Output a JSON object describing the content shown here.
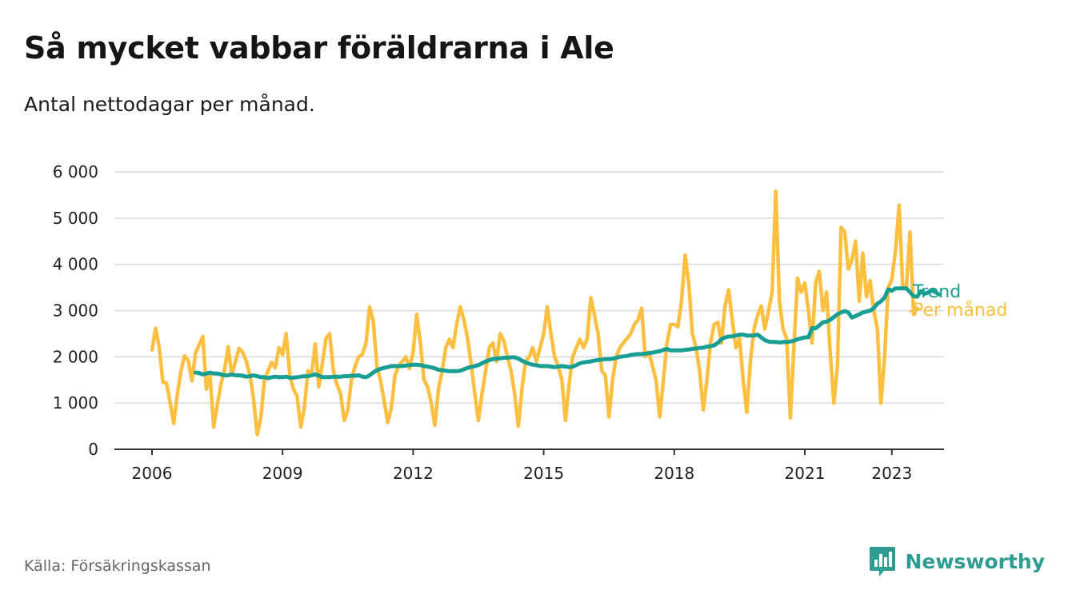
{
  "header": {
    "title": "Så mycket vabbar föräldrarna i Ale",
    "subtitle": "Antal nettodagar per månad."
  },
  "footer": {
    "source": "Källa: Försäkringskassan",
    "brand": "Newsworthy",
    "brand_icon": "bar-chart-icon",
    "brand_color": "#2f9c91"
  },
  "colors": {
    "monthly": "#fcbf40",
    "trend": "#189e92",
    "grid": "#d9d9d9",
    "axis": "#333333"
  },
  "chart_data": {
    "type": "line",
    "title": "Så mycket vabbar föräldrarna i Ale",
    "subtitle": "Antal nettodagar per månad.",
    "xlabel": "",
    "ylabel": "",
    "x_start": "2006-01",
    "x_ticks": [
      "2006",
      "2009",
      "2012",
      "2015",
      "2018",
      "2021",
      "2023"
    ],
    "y_ticks": [
      0,
      1000,
      2000,
      3000,
      4000,
      5000,
      6000
    ],
    "y_tick_labels": [
      "0",
      "1 000",
      "2 000",
      "3 000",
      "4 000",
      "5 000",
      "6 000"
    ],
    "ylim": [
      0,
      6000
    ],
    "grid": true,
    "legend": "end-of-line labels",
    "series": [
      {
        "name": "Per månad",
        "color": "#fcbf40",
        "values": [
          2150,
          2620,
          2200,
          1450,
          1430,
          1000,
          560,
          1200,
          1700,
          2020,
          1920,
          1480,
          2080,
          2260,
          2440,
          1300,
          1600,
          480,
          960,
          1400,
          1720,
          2220,
          1600,
          1900,
          2180,
          2100,
          1900,
          1600,
          1100,
          320,
          680,
          1500,
          1700,
          1880,
          1760,
          2200,
          2050,
          2500,
          1600,
          1300,
          1150,
          480,
          900,
          1700,
          1620,
          2280,
          1350,
          1880,
          2400,
          2500,
          1700,
          1400,
          1200,
          620,
          850,
          1500,
          1800,
          2000,
          2050,
          2300,
          3080,
          2780,
          1800,
          1500,
          1050,
          580,
          900,
          1600,
          1800,
          1900,
          2000,
          1750,
          2100,
          2920,
          2300,
          1500,
          1350,
          1000,
          520,
          1300,
          1700,
          2200,
          2380,
          2200,
          2700,
          3080,
          2800,
          2400,
          1850,
          1200,
          620,
          1200,
          1700,
          2200,
          2300,
          1900,
          2500,
          2350,
          2000,
          1700,
          1200,
          500,
          1300,
          1900,
          2000,
          2200,
          1900,
          2200,
          2500,
          3080,
          2500,
          2000,
          1800,
          1500,
          620,
          1400,
          2000,
          2200,
          2380,
          2200,
          2400,
          3280,
          2900,
          2500,
          1700,
          1600,
          700,
          1500,
          2000,
          2200,
          2300,
          2400,
          2500,
          2700,
          2800,
          3050,
          2000,
          2100,
          1800,
          1500,
          700,
          1500,
          2300,
          2700,
          2700,
          2650,
          3200,
          4200,
          3600,
          2500,
          2200,
          1700,
          850,
          1500,
          2300,
          2700,
          2750,
          2300,
          3100,
          3450,
          2800,
          2200,
          2400,
          1500,
          800,
          1900,
          2600,
          2900,
          3100,
          2600,
          3000,
          3400,
          5580,
          3200,
          2600,
          2400,
          680,
          2200,
          3700,
          3400,
          3600,
          3000,
          2300,
          3600,
          3850,
          3000,
          3400,
          2100,
          1000,
          1800,
          4800,
          4700,
          3900,
          4100,
          4500,
          3200,
          4240,
          3300,
          3650,
          3000,
          2600,
          1000,
          2000,
          3500,
          3680,
          4280,
          5280,
          3500,
          3500,
          4700,
          2920,
          3050
        ]
      },
      {
        "name": "Trend",
        "color": "#189e92",
        "start_index": 12,
        "values": [
          1660,
          1650,
          1620,
          1640,
          1660,
          1640,
          1640,
          1620,
          1600,
          1600,
          1620,
          1600,
          1600,
          1590,
          1570,
          1580,
          1600,
          1580,
          1560,
          1560,
          1540,
          1560,
          1570,
          1560,
          1560,
          1570,
          1550,
          1550,
          1560,
          1570,
          1580,
          1580,
          1600,
          1620,
          1590,
          1560,
          1560,
          1560,
          1570,
          1570,
          1570,
          1580,
          1580,
          1590,
          1590,
          1600,
          1570,
          1560,
          1600,
          1660,
          1710,
          1740,
          1760,
          1780,
          1800,
          1800,
          1800,
          1800,
          1810,
          1820,
          1830,
          1830,
          1820,
          1800,
          1790,
          1770,
          1750,
          1720,
          1710,
          1700,
          1690,
          1690,
          1690,
          1700,
          1730,
          1760,
          1780,
          1800,
          1820,
          1860,
          1900,
          1930,
          1950,
          1960,
          1970,
          1980,
          1980,
          1990,
          1990,
          1960,
          1920,
          1880,
          1850,
          1830,
          1820,
          1800,
          1800,
          1800,
          1790,
          1780,
          1790,
          1800,
          1790,
          1780,
          1790,
          1820,
          1860,
          1880,
          1890,
          1900,
          1920,
          1930,
          1940,
          1950,
          1950,
          1960,
          1980,
          2000,
          2010,
          2020,
          2040,
          2050,
          2060,
          2060,
          2070,
          2080,
          2090,
          2110,
          2120,
          2150,
          2170,
          2140,
          2140,
          2140,
          2140,
          2150,
          2160,
          2170,
          2180,
          2190,
          2200,
          2220,
          2230,
          2250,
          2300,
          2380,
          2420,
          2440,
          2440,
          2460,
          2480,
          2480,
          2460,
          2460,
          2460,
          2480,
          2420,
          2360,
          2330,
          2320,
          2320,
          2310,
          2320,
          2320,
          2330,
          2350,
          2380,
          2400,
          2420,
          2420,
          2620,
          2620,
          2680,
          2750,
          2760,
          2800,
          2860,
          2920,
          2960,
          2990,
          2960,
          2850,
          2880,
          2920,
          2960,
          2980,
          3000,
          3050,
          3150,
          3200,
          3280,
          3460,
          3430,
          3480,
          3480,
          3480,
          3480,
          3400,
          3310,
          3300,
          3420,
          3360,
          3390,
          3450,
          3400,
          3350
        ]
      }
    ]
  }
}
